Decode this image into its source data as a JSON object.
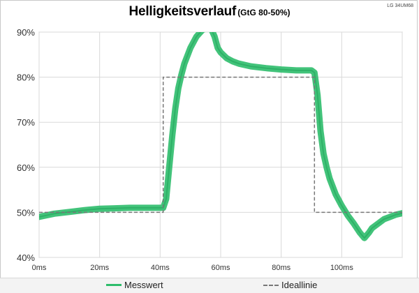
{
  "header": {
    "title": "Helligkeitsverlauf",
    "subtitle": "(GtG 80-50%)",
    "corner_label": "LG 34UM68"
  },
  "colors": {
    "measured": "#2ebd6b",
    "ideal": "#777777",
    "grid": "#d9d9d9",
    "axis_text": "#333333"
  },
  "chart_data": {
    "type": "line",
    "title": "Helligkeitsverlauf",
    "subtitle": "(GtG 80-50%)",
    "xlabel": "",
    "ylabel": "",
    "xlim": [
      0,
      120
    ],
    "ylim": [
      40,
      90
    ],
    "x_ticks": [
      "0ms",
      "20ms",
      "40ms",
      "60ms",
      "80ms",
      "100ms"
    ],
    "x_tick_values": [
      0,
      20,
      40,
      60,
      80,
      100
    ],
    "y_ticks": [
      "40%",
      "50%",
      "60%",
      "70%",
      "80%",
      "90%"
    ],
    "y_tick_values": [
      40,
      50,
      60,
      70,
      80,
      90
    ],
    "grid": true,
    "legend_position": "bottom",
    "series": [
      {
        "name": "Messwert",
        "style": "solid",
        "x": [
          0,
          5,
          10,
          15,
          20,
          25,
          30,
          35,
          40,
          41,
          42,
          43,
          44,
          45,
          46,
          47,
          48,
          50,
          52,
          54,
          56,
          57,
          58,
          59,
          60,
          62,
          64,
          66,
          70,
          75,
          80,
          85,
          90,
          91,
          92,
          93,
          94,
          95,
          96,
          98,
          100,
          102,
          104,
          106,
          107.5,
          109,
          110,
          112,
          114,
          116,
          118,
          120
        ],
        "values": [
          49,
          49.7,
          50.1,
          50.5,
          50.8,
          50.9,
          51,
          51,
          51,
          51,
          53,
          60,
          67,
          73,
          77.5,
          80.5,
          83,
          86.5,
          89,
          90.5,
          91,
          90.5,
          89,
          86.5,
          85.5,
          84.2,
          83.5,
          83,
          82.4,
          82,
          81.7,
          81.5,
          81.5,
          81,
          76,
          68,
          63,
          60,
          57.5,
          54,
          51.5,
          49.3,
          47.5,
          45.5,
          44.3,
          45.5,
          46.5,
          47.5,
          48.5,
          49,
          49.5,
          49.8
        ]
      },
      {
        "name": "Ideallinie",
        "style": "dashed",
        "x": [
          0,
          41,
          41,
          91,
          91,
          120
        ],
        "values": [
          50,
          50,
          80,
          80,
          50,
          50
        ]
      }
    ]
  }
}
